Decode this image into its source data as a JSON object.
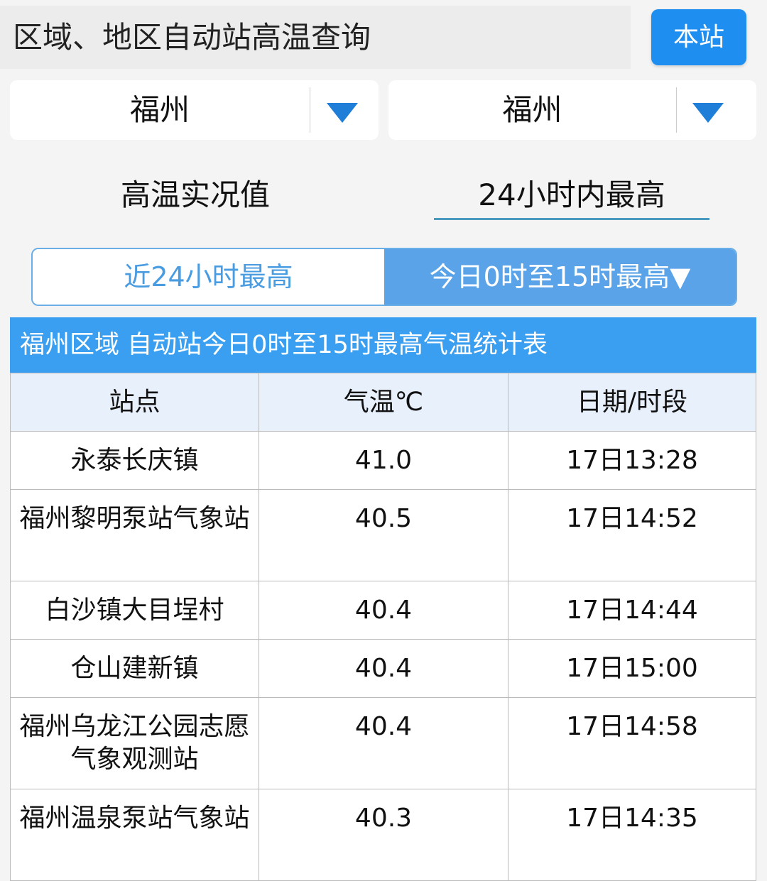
{
  "header": {
    "title": "区域、地区自动站高温查询",
    "local_button": "本站"
  },
  "selectors": [
    {
      "value": "福州",
      "icon": "triangle-down-icon"
    },
    {
      "value": "福州",
      "icon": "triangle-down-icon"
    }
  ],
  "tabs": [
    {
      "label": "高温实况值",
      "active": false
    },
    {
      "label": "24小时内最高",
      "active": true
    }
  ],
  "segments": [
    {
      "label": "近24小时最高",
      "active": false
    },
    {
      "label": "今日0时至15时最高▼",
      "active": true
    }
  ],
  "colors": {
    "accent": "#1e8ff0",
    "table_title": "#3a9ff0",
    "segment_active": "#5aa3e8",
    "header_row": "#e8f0fc"
  },
  "table": {
    "title": "福州区域 自动站今日0时至15时最高气温统计表",
    "columns": [
      "站点",
      "气温℃",
      "日期/时段"
    ],
    "rows": [
      [
        "永泰长庆镇",
        "41.0",
        "17日13:28"
      ],
      [
        "福州黎明泵站气象站",
        "40.5",
        "17日14:52"
      ],
      [
        "白沙镇大目埕村",
        "40.4",
        "17日14:44"
      ],
      [
        "仓山建新镇",
        "40.4",
        "17日15:00"
      ],
      [
        "福州乌龙江公园志愿气象观测站",
        "40.4",
        "17日14:58"
      ],
      [
        "福州温泉泵站气象站",
        "40.3",
        "17日14:35"
      ]
    ]
  }
}
